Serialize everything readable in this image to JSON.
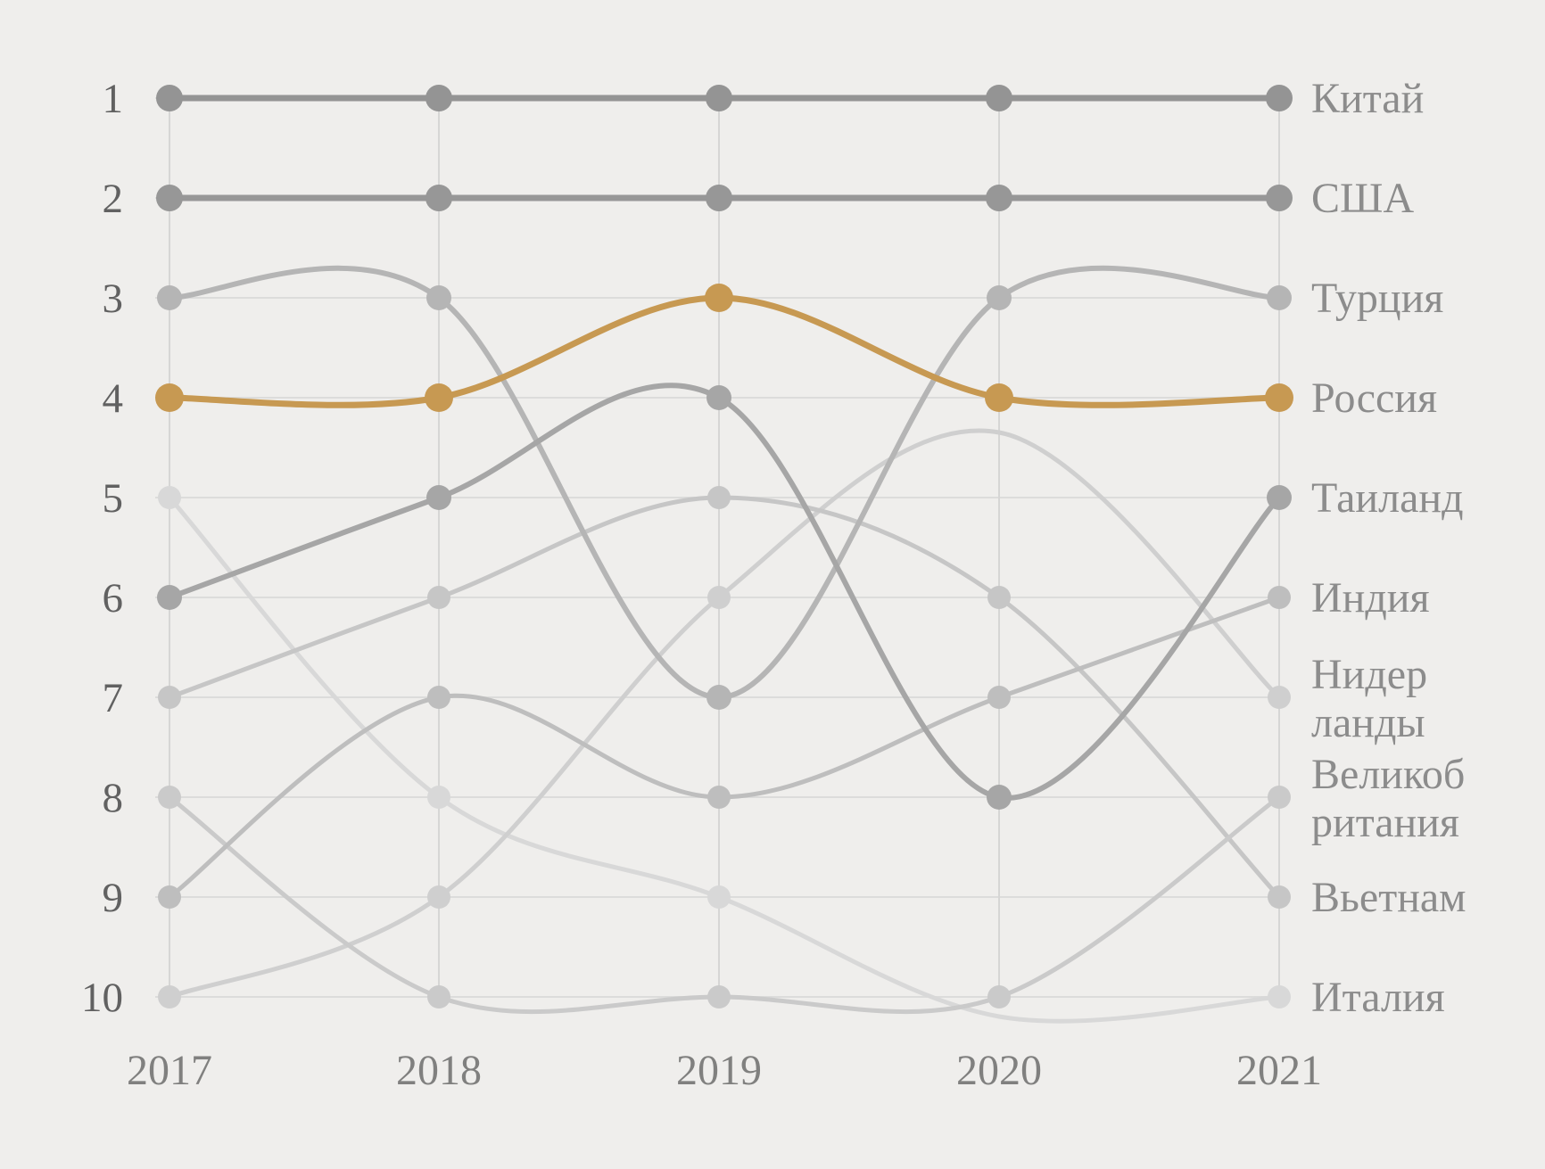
{
  "chart_data": {
    "type": "line",
    "subtype": "bump-rank-chart",
    "title": "",
    "xlabel": "",
    "ylabel": "",
    "years": [
      "2017",
      "2018",
      "2019",
      "2020",
      "2021"
    ],
    "rank_numbers": [
      "1",
      "2",
      "3",
      "4",
      "5",
      "6",
      "7",
      "8",
      "9",
      "10"
    ],
    "ylim": [
      1,
      10
    ],
    "grid": "on",
    "legend_position": "right-inline-labels",
    "colors": {
      "background": "#efeeec",
      "gridline": "#dcdcdb",
      "column_line": "#d6d6d5",
      "rank_number_text": "#616161",
      "year_text": "#80807f",
      "label_text": "#8c8c8c",
      "accent_orange": "#c79952"
    },
    "series": [
      {
        "id": "italy",
        "label": "Италия",
        "label_lines": [
          "Италия"
        ],
        "color": "#d8d8d8",
        "width": 5,
        "dot": 13,
        "values": [
          5,
          8,
          9,
          null,
          10
        ],
        "gap_bridge_rank": 10.2,
        "highlight": false
      },
      {
        "id": "netherlands",
        "label": "Нидерланды",
        "label_lines": [
          "Нидер",
          "ланды"
        ],
        "color": "#cfcfcf",
        "width": 5,
        "dot": 13,
        "values": [
          10,
          9,
          6,
          null,
          7
        ],
        "gap_bridge_rank": 4.35,
        "highlight": false
      },
      {
        "id": "vietnam",
        "label": "Вьетнам",
        "label_lines": [
          "Вьетнам"
        ],
        "color": "#c6c6c6",
        "width": 5,
        "dot": 13,
        "values": [
          7,
          6,
          5,
          6,
          9
        ],
        "highlight": false
      },
      {
        "id": "uk",
        "label": "Великобритания",
        "label_lines": [
          "Великоб",
          "ритания"
        ],
        "color": "#cacaca",
        "width": 5,
        "dot": 13,
        "values": [
          8,
          10,
          10,
          10,
          8
        ],
        "highlight": false
      },
      {
        "id": "india",
        "label": "Индия",
        "label_lines": [
          "Индия"
        ],
        "color": "#bebebe",
        "width": 5,
        "dot": 13,
        "values": [
          9,
          7,
          8,
          7,
          6
        ],
        "highlight": false
      },
      {
        "id": "turkey",
        "label": "Турция",
        "label_lines": [
          "Турция"
        ],
        "color": "#b5b5b5",
        "width": 6,
        "dot": 14,
        "values": [
          3,
          3,
          7,
          3,
          3
        ],
        "highlight": false
      },
      {
        "id": "thailand",
        "label": "Таиланд",
        "label_lines": [
          "Таиланд"
        ],
        "color": "#a6a6a6",
        "width": 6,
        "dot": 14,
        "values": [
          6,
          5,
          4,
          8,
          5
        ],
        "highlight": false
      },
      {
        "id": "usa",
        "label": "США",
        "label_lines": [
          "США"
        ],
        "color": "#979797",
        "width": 7,
        "dot": 15,
        "values": [
          2,
          2,
          2,
          2,
          2
        ],
        "highlight": false
      },
      {
        "id": "china",
        "label": "Китай",
        "label_lines": [
          "Китай"
        ],
        "color": "#949494",
        "width": 7,
        "dot": 15,
        "values": [
          1,
          1,
          1,
          1,
          1
        ],
        "highlight": false
      },
      {
        "id": "russia",
        "label": "Россия",
        "label_lines": [
          "Россия"
        ],
        "color": "#c79952",
        "width": 7,
        "dot": 16,
        "values": [
          4,
          4,
          3,
          4,
          4
        ],
        "highlight": true
      }
    ]
  }
}
